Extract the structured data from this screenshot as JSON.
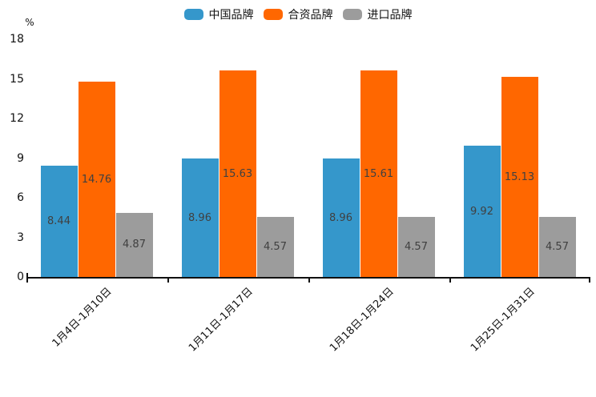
{
  "chart_data": {
    "type": "bar",
    "title": "",
    "ylabel": "%",
    "xlabel": "",
    "ylim": [
      0,
      18
    ],
    "y_tick_step": 3,
    "grid": false,
    "legend_position": "top",
    "data_labels": "inside-center",
    "categories": [
      "1月4日-1月10日",
      "1月11日-1月17日",
      "1月18日-1月24日",
      "1月25日-1月31日"
    ],
    "series": [
      {
        "name": "中国品牌",
        "color": "#3597cb",
        "values": [
          8.44,
          8.96,
          8.96,
          9.92
        ]
      },
      {
        "name": "合资品牌",
        "color": "#ff6700",
        "values": [
          14.76,
          15.63,
          15.61,
          15.13
        ]
      },
      {
        "name": "进口品牌",
        "color": "#9c9c9c",
        "values": [
          4.87,
          4.57,
          4.57,
          4.57
        ]
      }
    ],
    "colors": {
      "axis": "#111111",
      "data_label_text": "#404040"
    }
  }
}
